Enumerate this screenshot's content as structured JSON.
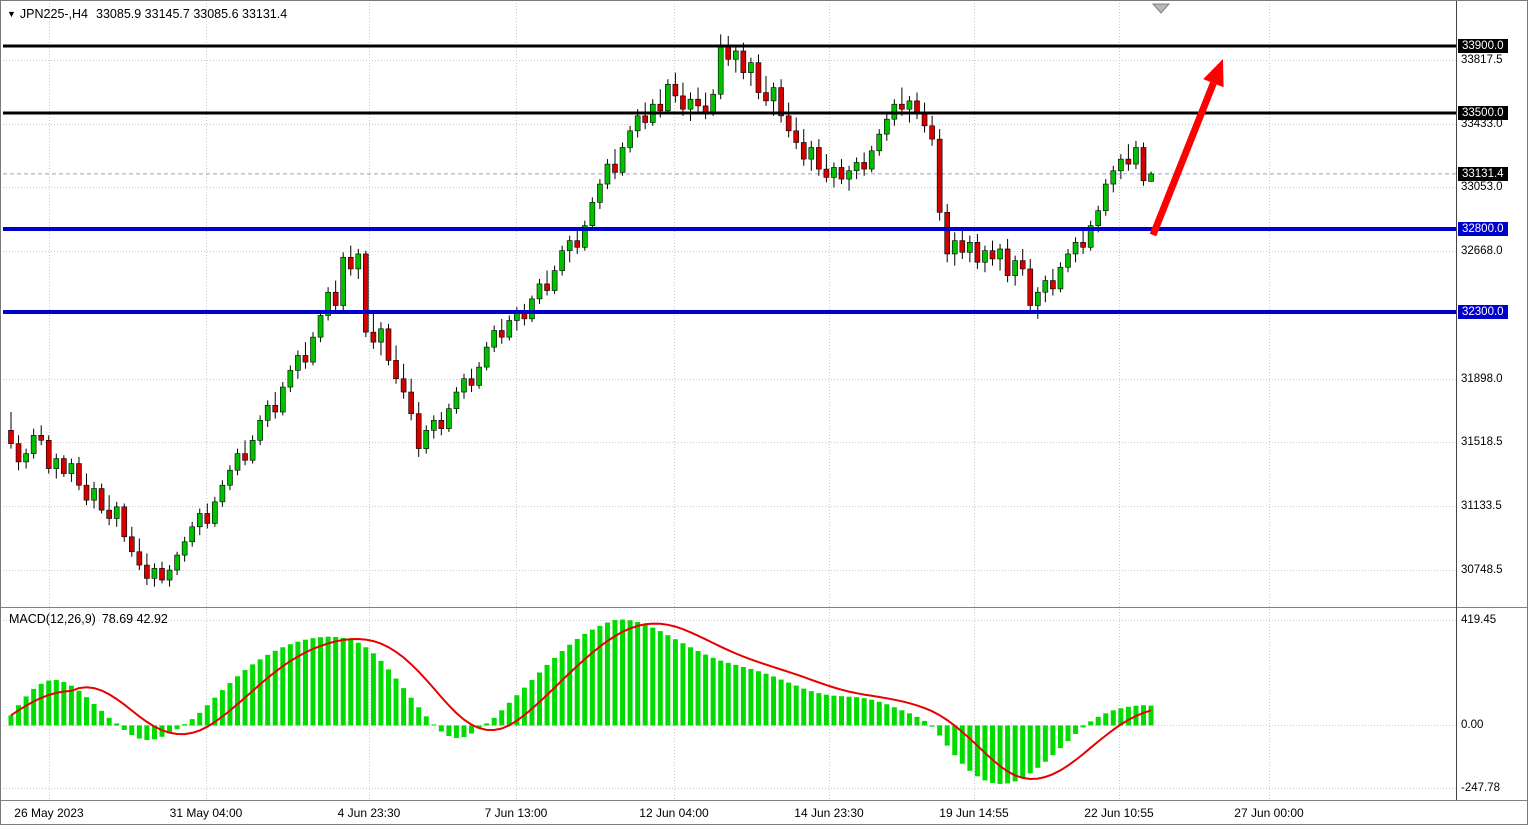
{
  "header": {
    "indicator_triangle": "▼",
    "symbol_timeframe": "JPN225-,H4",
    "quote": "33085.9 33145.7 33085.6 33131.4"
  },
  "macd_panel": {
    "name": "MACD(12,26,9)",
    "values": "78.69 42.92"
  },
  "colors": {
    "bull": "#00C000",
    "bear": "#D40000",
    "wick": "#000000",
    "grid": "#C8C8C8",
    "hline_black": "#000000",
    "hline_blue": "#0000CC",
    "macd_bar": "#00DC00",
    "macd_signal": "#E80000",
    "arrow": "#FF0000",
    "current_bg": "#000000",
    "axis_text": "#000000"
  },
  "price_axis": {
    "labels": [
      {
        "text": "33900.0",
        "price": 33900.0,
        "style": "line-black"
      },
      {
        "text": "33817.5",
        "price": 33817.5,
        "style": "grid"
      },
      {
        "text": "33500.0",
        "price": 33500.0,
        "style": "line-black"
      },
      {
        "text": "33433.0",
        "price": 33433.0,
        "style": "grid"
      },
      {
        "text": "33131.4",
        "price": 33131.4,
        "style": "current"
      },
      {
        "text": "33053.0",
        "price": 33053.0,
        "style": "grid"
      },
      {
        "text": "32800.0",
        "price": 32800.0,
        "style": "line-blue"
      },
      {
        "text": "32668.0",
        "price": 32668.0,
        "style": "grid"
      },
      {
        "text": "32300.0",
        "price": 32300.0,
        "style": "line-blue"
      },
      {
        "text": "31898.0",
        "price": 31898.0,
        "style": "grid"
      },
      {
        "text": "31518.5",
        "price": 31518.5,
        "style": "grid"
      },
      {
        "text": "31133.5",
        "price": 31133.5,
        "style": "grid"
      },
      {
        "text": "30748.5",
        "price": 30748.5,
        "style": "grid"
      }
    ]
  },
  "time_axis": {
    "labels": [
      "26 May 2023",
      "31 May 04:00",
      "4 Jun 23:30",
      "7 Jun 13:00",
      "12 Jun 04:00",
      "14 Jun 23:30",
      "19 Jun 14:55",
      "22 Jun 10:55",
      "27 Jun 00:00"
    ]
  },
  "annotations": {
    "trend_arrow": {
      "direction": "up",
      "color": "#FF0000"
    }
  },
  "chart_data": [
    {
      "type": "candlestick",
      "title": "JPN225-,H4",
      "ohlc_current": {
        "open": 33085.9,
        "high": 33145.7,
        "low": 33085.6,
        "close": 33131.4
      },
      "current_price": 33131.4,
      "ylim": [
        30540,
        33990
      ],
      "hlines": [
        {
          "label": "33900.0",
          "price": 33900.0,
          "color": "#000000",
          "width": 3
        },
        {
          "label": "33500.0",
          "price": 33500.0,
          "color": "#000000",
          "width": 3
        },
        {
          "label": "32800.0",
          "price": 32800.0,
          "color": "#0000CC",
          "width": 4
        },
        {
          "label": "32300.0",
          "price": 32300.0,
          "color": "#0000CC",
          "width": 4
        }
      ],
      "candles": [
        [
          31590,
          31700,
          31480,
          31510
        ],
        [
          31510,
          31560,
          31350,
          31400
        ],
        [
          31400,
          31480,
          31360,
          31450
        ],
        [
          31450,
          31600,
          31420,
          31560
        ],
        [
          31560,
          31620,
          31500,
          31530
        ],
        [
          31530,
          31560,
          31330,
          31360
        ],
        [
          31360,
          31450,
          31300,
          31420
        ],
        [
          31420,
          31440,
          31310,
          31330
        ],
        [
          31330,
          31420,
          31280,
          31390
        ],
        [
          31390,
          31430,
          31230,
          31260
        ],
        [
          31260,
          31330,
          31140,
          31170
        ],
        [
          31170,
          31280,
          31120,
          31240
        ],
        [
          31240,
          31270,
          31090,
          31110
        ],
        [
          31110,
          31200,
          31020,
          31060
        ],
        [
          31060,
          31160,
          31010,
          31130
        ],
        [
          31130,
          31150,
          30920,
          30950
        ],
        [
          30950,
          31010,
          30830,
          30860
        ],
        [
          30860,
          30940,
          30750,
          30780
        ],
        [
          30780,
          30850,
          30660,
          30700
        ],
        [
          30700,
          30790,
          30650,
          30760
        ],
        [
          30760,
          30800,
          30670,
          30690
        ],
        [
          30690,
          30780,
          30650,
          30750
        ],
        [
          30750,
          30860,
          30720,
          30840
        ],
        [
          30840,
          30950,
          30800,
          30920
        ],
        [
          30920,
          31040,
          30890,
          31010
        ],
        [
          31010,
          31120,
          30960,
          31090
        ],
        [
          31090,
          31150,
          31000,
          31030
        ],
        [
          31030,
          31190,
          31010,
          31160
        ],
        [
          31160,
          31290,
          31130,
          31260
        ],
        [
          31260,
          31380,
          31230,
          31350
        ],
        [
          31350,
          31480,
          31320,
          31450
        ],
        [
          31450,
          31530,
          31380,
          31410
        ],
        [
          31410,
          31560,
          31390,
          31530
        ],
        [
          31530,
          31680,
          31500,
          31650
        ],
        [
          31650,
          31770,
          31610,
          31740
        ],
        [
          31740,
          31820,
          31660,
          31700
        ],
        [
          31700,
          31880,
          31680,
          31850
        ],
        [
          31850,
          31980,
          31820,
          31950
        ],
        [
          31950,
          32070,
          31900,
          32040
        ],
        [
          32040,
          32120,
          31960,
          32000
        ],
        [
          32000,
          32180,
          31980,
          32150
        ],
        [
          32150,
          32310,
          32120,
          32280
        ],
        [
          32280,
          32450,
          32250,
          32420
        ],
        [
          32420,
          32490,
          32300,
          32340
        ],
        [
          32340,
          32660,
          32300,
          32630
        ],
        [
          32630,
          32700,
          32520,
          32560
        ],
        [
          32560,
          32680,
          32500,
          32650
        ],
        [
          32650,
          32670,
          32150,
          32180
        ],
        [
          32180,
          32300,
          32080,
          32120
        ],
        [
          32120,
          32240,
          32040,
          32200
        ],
        [
          32200,
          32230,
          31980,
          32010
        ],
        [
          32010,
          32100,
          31870,
          31900
        ],
        [
          31900,
          31990,
          31780,
          31820
        ],
        [
          31820,
          31900,
          31650,
          31690
        ],
        [
          31690,
          31760,
          31430,
          31480
        ],
        [
          31480,
          31620,
          31450,
          31590
        ],
        [
          31590,
          31680,
          31540,
          31650
        ],
        [
          31650,
          31700,
          31560,
          31600
        ],
        [
          31600,
          31750,
          31580,
          31720
        ],
        [
          31720,
          31850,
          31690,
          31820
        ],
        [
          31820,
          31930,
          31780,
          31900
        ],
        [
          31900,
          31960,
          31820,
          31860
        ],
        [
          31860,
          32000,
          31840,
          31970
        ],
        [
          31970,
          32120,
          31950,
          32090
        ],
        [
          32090,
          32220,
          32060,
          32190
        ],
        [
          32190,
          32260,
          32110,
          32150
        ],
        [
          32150,
          32280,
          32130,
          32250
        ],
        [
          32250,
          32330,
          32190,
          32300
        ],
        [
          32300,
          32350,
          32220,
          32260
        ],
        [
          32260,
          32400,
          32240,
          32380
        ],
        [
          32380,
          32500,
          32350,
          32470
        ],
        [
          32470,
          32550,
          32400,
          32430
        ],
        [
          32430,
          32580,
          32410,
          32550
        ],
        [
          32550,
          32700,
          32520,
          32670
        ],
        [
          32670,
          32760,
          32600,
          32730
        ],
        [
          32730,
          32800,
          32650,
          32690
        ],
        [
          32690,
          32850,
          32670,
          32820
        ],
        [
          32820,
          32990,
          32790,
          32960
        ],
        [
          32960,
          33100,
          32920,
          33070
        ],
        [
          33070,
          33220,
          33040,
          33190
        ],
        [
          33190,
          33280,
          33100,
          33140
        ],
        [
          33140,
          33320,
          33120,
          33290
        ],
        [
          33290,
          33420,
          33260,
          33390
        ],
        [
          33390,
          33520,
          33350,
          33480
        ],
        [
          33480,
          33560,
          33400,
          33440
        ],
        [
          33440,
          33580,
          33420,
          33550
        ],
        [
          33550,
          33640,
          33470,
          33510
        ],
        [
          33510,
          33700,
          33490,
          33670
        ],
        [
          33670,
          33740,
          33560,
          33600
        ],
        [
          33600,
          33680,
          33480,
          33520
        ],
        [
          33520,
          33620,
          33450,
          33580
        ],
        [
          33580,
          33650,
          33500,
          33540
        ],
        [
          33540,
          33620,
          33460,
          33500
        ],
        [
          33500,
          33640,
          33480,
          33610
        ],
        [
          33610,
          33970,
          33580,
          33900
        ],
        [
          33900,
          33960,
          33780,
          33820
        ],
        [
          33820,
          33900,
          33740,
          33870
        ],
        [
          33870,
          33920,
          33700,
          33740
        ],
        [
          33740,
          33830,
          33660,
          33800
        ],
        [
          33800,
          33850,
          33580,
          33620
        ],
        [
          33620,
          33720,
          33540,
          33570
        ],
        [
          33570,
          33680,
          33480,
          33650
        ],
        [
          33650,
          33700,
          33440,
          33480
        ],
        [
          33480,
          33560,
          33350,
          33390
        ],
        [
          33390,
          33470,
          33280,
          33320
        ],
        [
          33320,
          33400,
          33180,
          33220
        ],
        [
          33220,
          33330,
          33150,
          33290
        ],
        [
          33290,
          33340,
          33120,
          33160
        ],
        [
          33160,
          33250,
          33080,
          33110
        ],
        [
          33110,
          33200,
          33050,
          33170
        ],
        [
          33170,
          33220,
          33070,
          33100
        ],
        [
          33100,
          33180,
          33030,
          33150
        ],
        [
          33150,
          33230,
          33100,
          33200
        ],
        [
          33200,
          33260,
          33120,
          33160
        ],
        [
          33160,
          33300,
          33140,
          33270
        ],
        [
          33270,
          33400,
          33240,
          33370
        ],
        [
          33370,
          33500,
          33330,
          33460
        ],
        [
          33460,
          33580,
          33420,
          33550
        ],
        [
          33550,
          33650,
          33480,
          33520
        ],
        [
          33520,
          33600,
          33440,
          33570
        ],
        [
          33570,
          33620,
          33460,
          33500
        ],
        [
          33500,
          33560,
          33380,
          33420
        ],
        [
          33420,
          33480,
          33300,
          33340
        ],
        [
          33340,
          33400,
          32850,
          32900
        ],
        [
          32900,
          32950,
          32600,
          32650
        ],
        [
          32650,
          32780,
          32580,
          32730
        ],
        [
          32730,
          32800,
          32620,
          32660
        ],
        [
          32660,
          32760,
          32600,
          32720
        ],
        [
          32720,
          32770,
          32560,
          32600
        ],
        [
          32600,
          32700,
          32540,
          32670
        ],
        [
          32670,
          32730,
          32580,
          32620
        ],
        [
          32620,
          32710,
          32550,
          32680
        ],
        [
          32680,
          32740,
          32480,
          32520
        ],
        [
          32520,
          32640,
          32460,
          32610
        ],
        [
          32610,
          32680,
          32520,
          32560
        ],
        [
          32560,
          32620,
          32300,
          32340
        ],
        [
          32340,
          32450,
          32260,
          32420
        ],
        [
          32420,
          32520,
          32360,
          32490
        ],
        [
          32490,
          32560,
          32400,
          32440
        ],
        [
          32440,
          32600,
          32420,
          32570
        ],
        [
          32570,
          32680,
          32540,
          32650
        ],
        [
          32650,
          32750,
          32600,
          32720
        ],
        [
          32720,
          32800,
          32650,
          32690
        ],
        [
          32690,
          32850,
          32670,
          32820
        ],
        [
          32820,
          32940,
          32780,
          32910
        ],
        [
          32910,
          33100,
          32880,
          33070
        ],
        [
          33070,
          33180,
          33020,
          33150
        ],
        [
          33150,
          33250,
          33100,
          33220
        ],
        [
          33220,
          33310,
          33150,
          33190
        ],
        [
          33190,
          33330,
          33160,
          33290
        ],
        [
          33290,
          33320,
          33060,
          33090
        ],
        [
          33085.9,
          33145.7,
          33085.6,
          33131.4
        ]
      ]
    },
    {
      "type": "bar",
      "title": "MACD(12,26,9)",
      "current_macd": 78.69,
      "current_signal": 42.92,
      "ylim": [
        -260,
        430
      ],
      "axis": [
        {
          "text": "419.45",
          "value": 419.45
        },
        {
          "text": "0.00",
          "value": 0
        },
        {
          "text": "-247.78",
          "value": -247.78
        }
      ],
      "values": [
        40,
        80,
        115,
        145,
        165,
        178,
        180,
        172,
        158,
        138,
        112,
        85,
        58,
        30,
        8,
        -18,
        -38,
        -52,
        -58,
        -55,
        -45,
        -32,
        -15,
        5,
        25,
        50,
        80,
        110,
        140,
        168,
        195,
        220,
        242,
        262,
        280,
        296,
        310,
        322,
        332,
        340,
        346,
        350,
        352,
        351,
        347,
        340,
        328,
        310,
        286,
        256,
        222,
        186,
        148,
        110,
        72,
        36,
        4,
        -24,
        -42,
        -50,
        -46,
        -32,
        -12,
        8,
        30,
        60,
        90,
        120,
        150,
        180,
        210,
        240,
        268,
        295,
        320,
        343,
        363,
        380,
        395,
        408,
        418,
        420,
        417,
        410,
        400,
        388,
        374,
        358,
        342,
        326,
        310,
        295,
        281,
        268,
        257,
        248,
        240,
        232,
        224,
        215,
        205,
        194,
        182,
        170,
        158,
        146,
        136,
        128,
        122,
        118,
        116,
        114,
        112,
        108,
        102,
        94,
        84,
        72,
        60,
        48,
        34,
        18,
        -5,
        -40,
        -80,
        -118,
        -152,
        -180,
        -202,
        -218,
        -228,
        -232,
        -230,
        -222,
        -208,
        -190,
        -168,
        -144,
        -118,
        -90,
        -62,
        -34,
        -8,
        16,
        34,
        48,
        60,
        68,
        74,
        78,
        80,
        78.69
      ]
    }
  ]
}
